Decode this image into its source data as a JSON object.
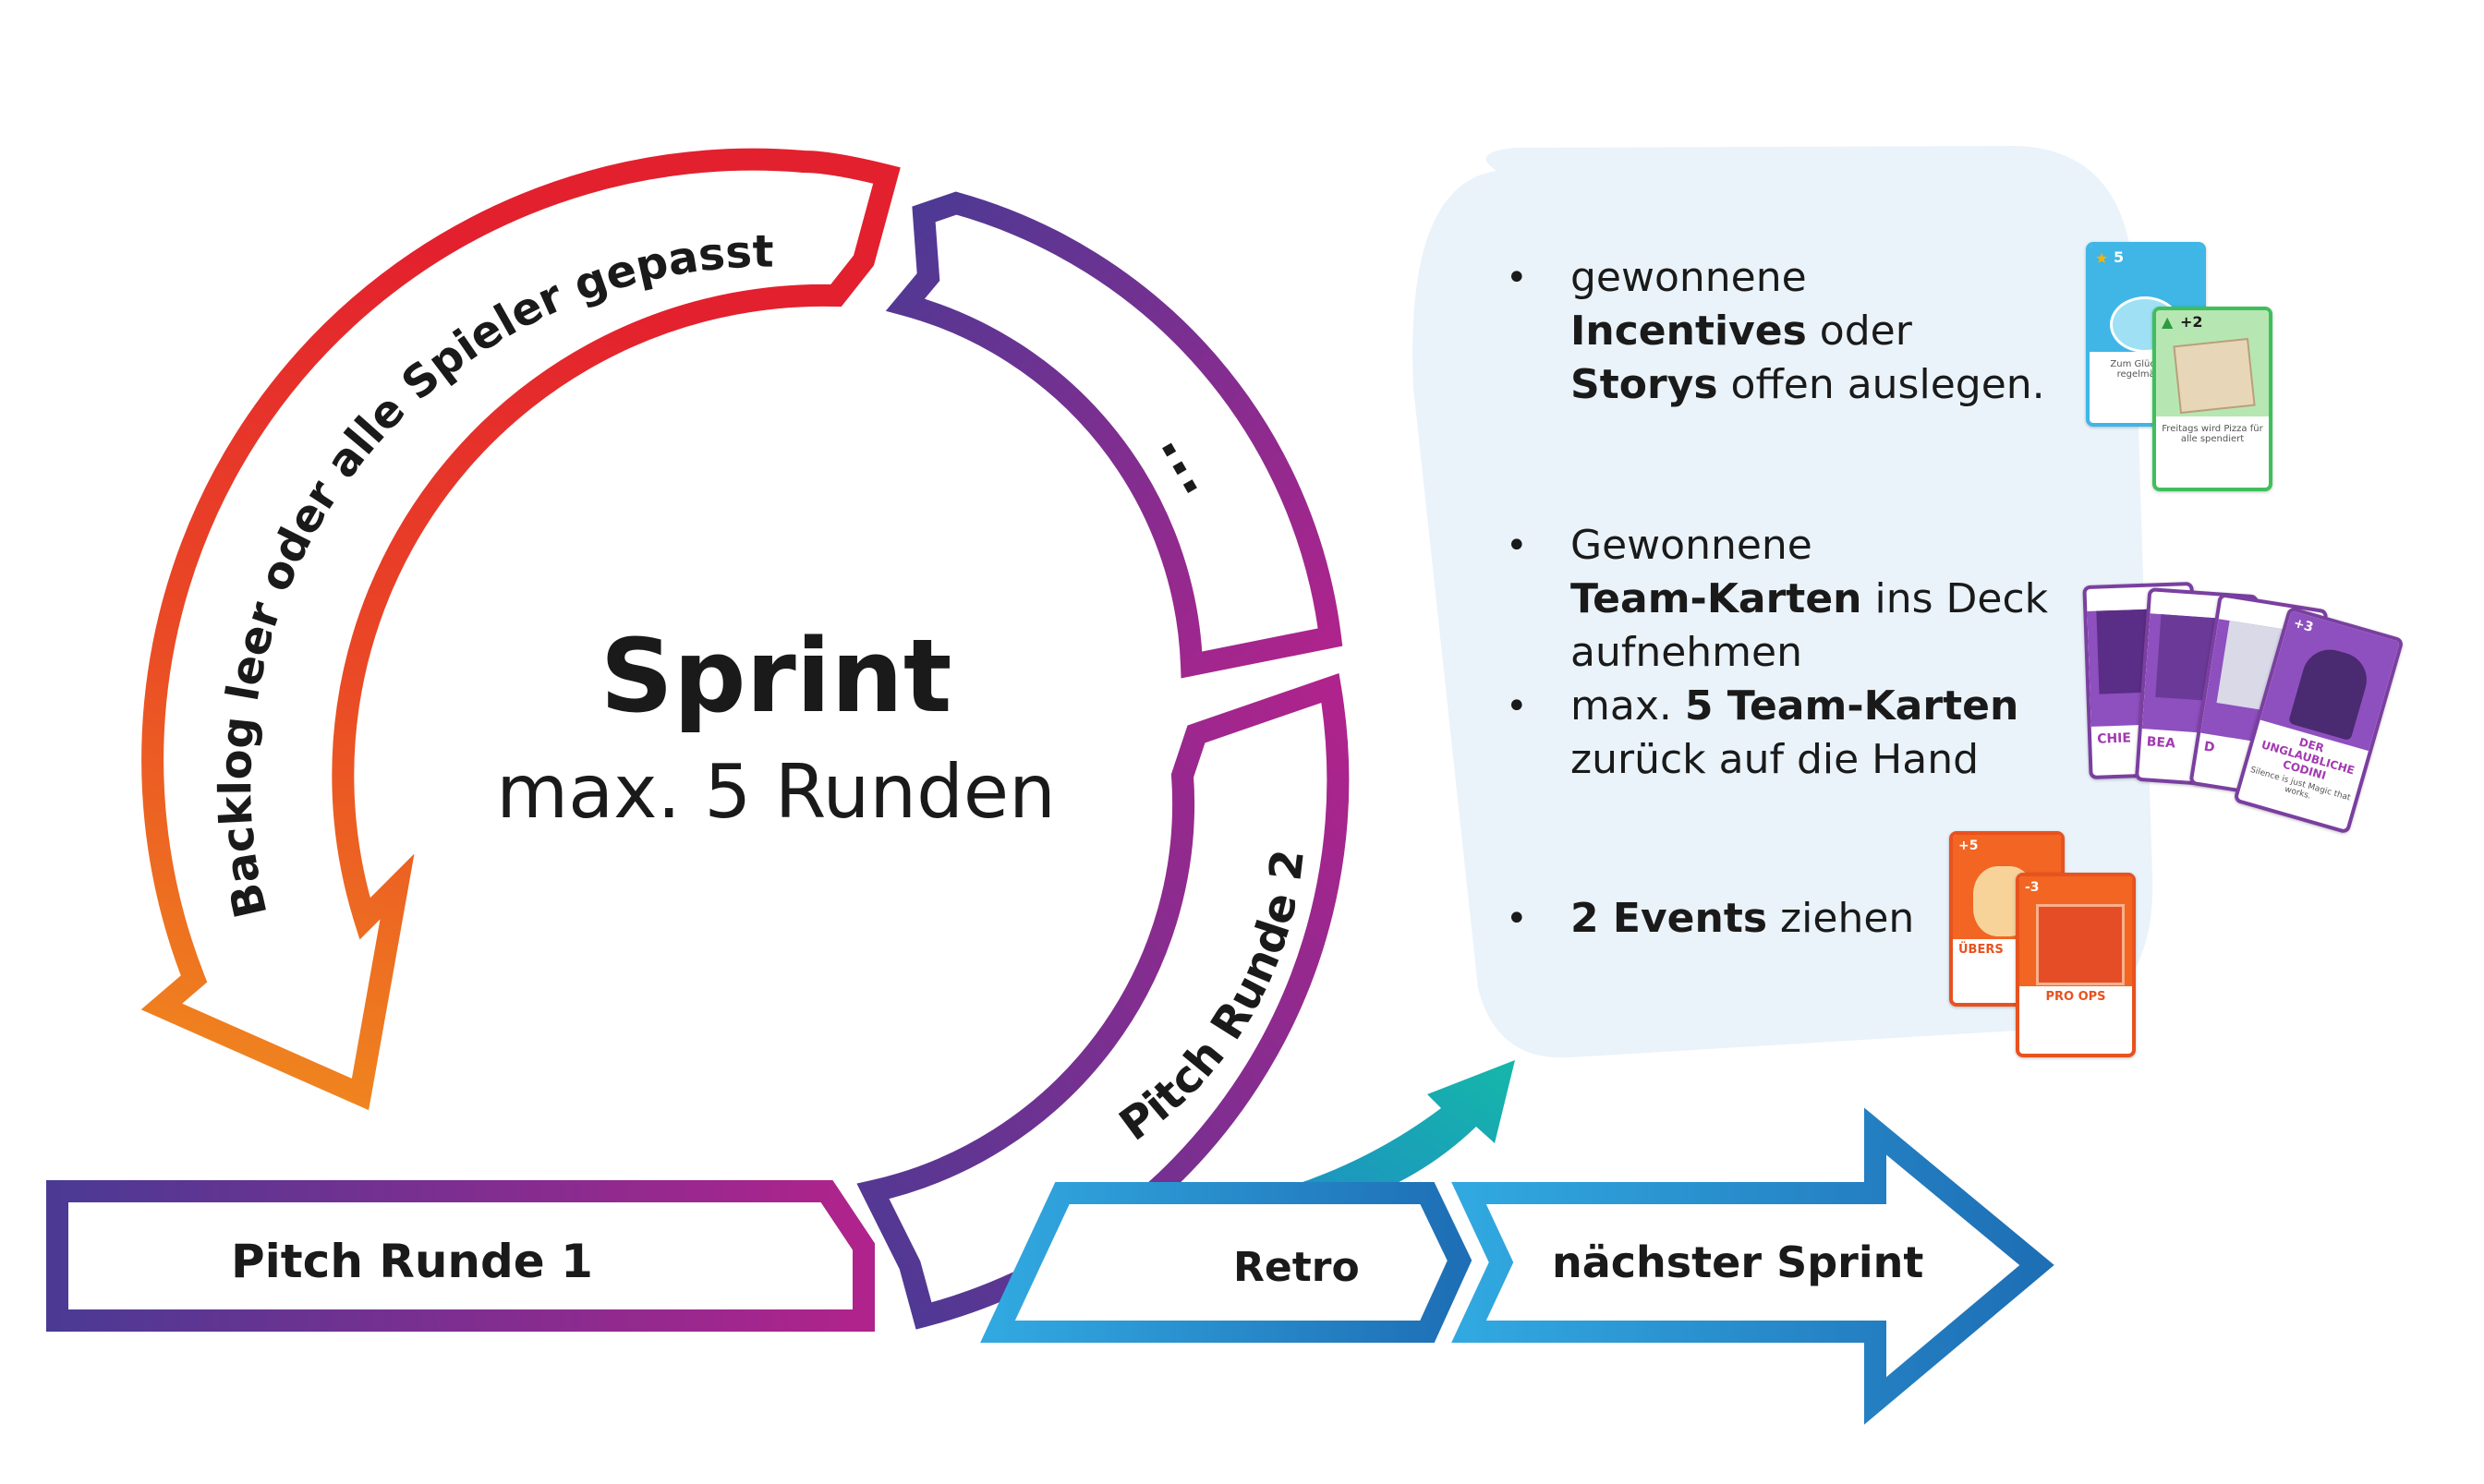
{
  "sprint": {
    "title": "Sprint",
    "subtitle": "max. 5 Runden"
  },
  "cycle": {
    "backlog_label": "Backlog leer oder alle Spieler gepasst",
    "ellipsis_label": "...",
    "pitch_round_2": "Pitch Runde 2",
    "pitch_round_1": "Pitch Runde 1"
  },
  "flow": {
    "retro": "Retro",
    "next_sprint": "nächster Sprint"
  },
  "panel": {
    "item1": {
      "line1": "gewonnene",
      "bold2": "Incentives",
      "rest2": " oder",
      "bold3": "Storys",
      "rest3": " offen auslegen."
    },
    "item2": {
      "line1": "Gewonnene",
      "bold2": "Team-Karten",
      "rest2": " ins Deck",
      "line3": "aufnehmen"
    },
    "item3": {
      "pre": "max. ",
      "bold": "5 Team-Karten",
      "line2": "zurück auf die Hand"
    },
    "item4": {
      "bold": "2 Events",
      "rest": " ziehen"
    },
    "bullet": "•"
  },
  "cards": {
    "incentive_value": "5",
    "story_value": "+2",
    "incentive_text": "Zum Glück m… regelmäßige",
    "story_text": "Freitags wird Pizza für alle spendiert",
    "team_1": "CHIE",
    "team_2": "BEA",
    "team_3": "D",
    "team_4_name": "DER UNGLAUBLICHE CODINI",
    "team_4_text": "Silence is just Magic that works.",
    "team_4_value": "+3",
    "event_1_title": "ÜBERS",
    "event_1_value": "+5",
    "event_2_title": "PRO OPS",
    "event_2_value": "-3"
  },
  "colors": {
    "orange": "#f07a1e",
    "red": "#e3202e",
    "purple": "#4b3a94",
    "magenta": "#b0238c",
    "blue": "#1e6fb5",
    "lightblue": "#31a8e0",
    "teal": "#15b7a9",
    "panel_bg": "#eaf3fa"
  }
}
